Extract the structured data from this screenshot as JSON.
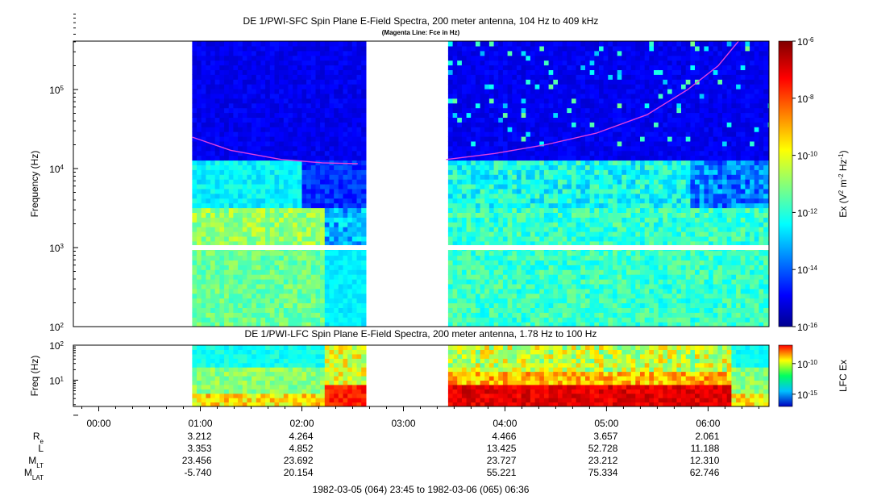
{
  "chart_data": [
    {
      "type": "heatmap",
      "title": "DE 1/PWI-SFC  Spin Plane E-Field Spectra, 200 meter antenna, 104 Hz to 409 kHz",
      "subtitle": "(Magenta Line: Fce in Hz)",
      "ylabel": "Frequency (Hz)",
      "yscale": "log",
      "ylim": [
        100,
        409000
      ],
      "y_ticks": [
        {
          "value": 100,
          "base": "10",
          "exp": "2"
        },
        {
          "value": 1000,
          "base": "10",
          "exp": "3"
        },
        {
          "value": 10000,
          "base": "10",
          "exp": "4"
        },
        {
          "value": 100000,
          "base": "10",
          "exp": "5"
        }
      ],
      "time_range_hours": [
        23.75,
        30.6
      ],
      "data_gaps_hours": [
        [
          23.75,
          24.92
        ],
        [
          26.63,
          27.42
        ]
      ],
      "colorbar": {
        "label": "Ex (V",
        "label_parts": [
          "Ex (V",
          "2",
          " m",
          "-2",
          " Hz",
          "-1",
          ")"
        ],
        "log_range": [
          -16,
          -6
        ],
        "ticks": [
          {
            "base": "10",
            "exp": "-6",
            "log": -6
          },
          {
            "base": "10",
            "exp": "-8",
            "log": -8
          },
          {
            "base": "10",
            "exp": "-10",
            "log": -10
          },
          {
            "base": "10",
            "exp": "-12",
            "log": -12
          },
          {
            "base": "10",
            "exp": "-14",
            "log": -14
          },
          {
            "base": "10",
            "exp": "-16",
            "log": -16
          }
        ]
      },
      "fce_line": {
        "label": "Fce in Hz",
        "color": "#e040e0",
        "segments": [
          [
            [
              24.92,
              25000
            ],
            [
              25.3,
              17000
            ],
            [
              25.8,
              13000
            ],
            [
              26.2,
              11800
            ],
            [
              26.55,
              11500
            ]
          ],
          [
            [
              27.42,
              13000
            ],
            [
              27.9,
              15500
            ],
            [
              28.4,
              20000
            ],
            [
              28.9,
              28000
            ],
            [
              29.4,
              48000
            ],
            [
              29.8,
              100000
            ],
            [
              30.1,
              200000
            ],
            [
              30.3,
              409000
            ]
          ]
        ]
      }
    },
    {
      "type": "heatmap",
      "title": "DE 1/PWI-LFC  Spin Plane E-Field Spectra, 200 meter antenna, 1.78 Hz to 100 Hz",
      "ylabel": "Freq (Hz)",
      "yscale": "log",
      "ylim": [
        1.78,
        100
      ],
      "y_ticks": [
        {
          "value": 10,
          "base": "10",
          "exp": "1"
        },
        {
          "value": 100,
          "base": "10",
          "exp": "2"
        }
      ],
      "time_range_hours": [
        23.75,
        30.6
      ],
      "data_gaps_hours": [
        [
          23.75,
          24.92
        ],
        [
          26.63,
          27.42
        ]
      ],
      "colorbar": {
        "label": "LFC Ex",
        "log_range": [
          -17,
          -7
        ],
        "ticks": [
          {
            "base": "10",
            "exp": "-10",
            "log": -10
          },
          {
            "base": "10",
            "exp": "-15",
            "log": -15
          }
        ]
      }
    }
  ],
  "x_axis": {
    "tick_labels": [
      "00:00",
      "01:00",
      "02:00",
      "03:00",
      "04:00",
      "05:00",
      "06:00"
    ],
    "tick_hours": [
      24,
      25,
      26,
      27,
      28,
      29,
      30
    ],
    "range_label": "1982-03-05 (064) 23:45 to 1982-03-06 (065) 06:36"
  },
  "ephemeris": {
    "rows": [
      {
        "label": "R",
        "sub": "e",
        "values": [
          "3.212",
          "4.264",
          "",
          "4.466",
          "3.657",
          "2.061"
        ]
      },
      {
        "label": "L",
        "sub": "",
        "values": [
          "3.353",
          "4.852",
          "",
          "13.425",
          "52.728",
          "11.188"
        ]
      },
      {
        "label": "M",
        "sub": "LT",
        "values": [
          "23.456",
          "23.692",
          "",
          "23.727",
          "23.212",
          "12.310"
        ]
      },
      {
        "label": "M",
        "sub": "LAT",
        "values": [
          "-5.740",
          "20.154",
          "",
          "55.221",
          "75.334",
          "62.746"
        ]
      }
    ]
  }
}
